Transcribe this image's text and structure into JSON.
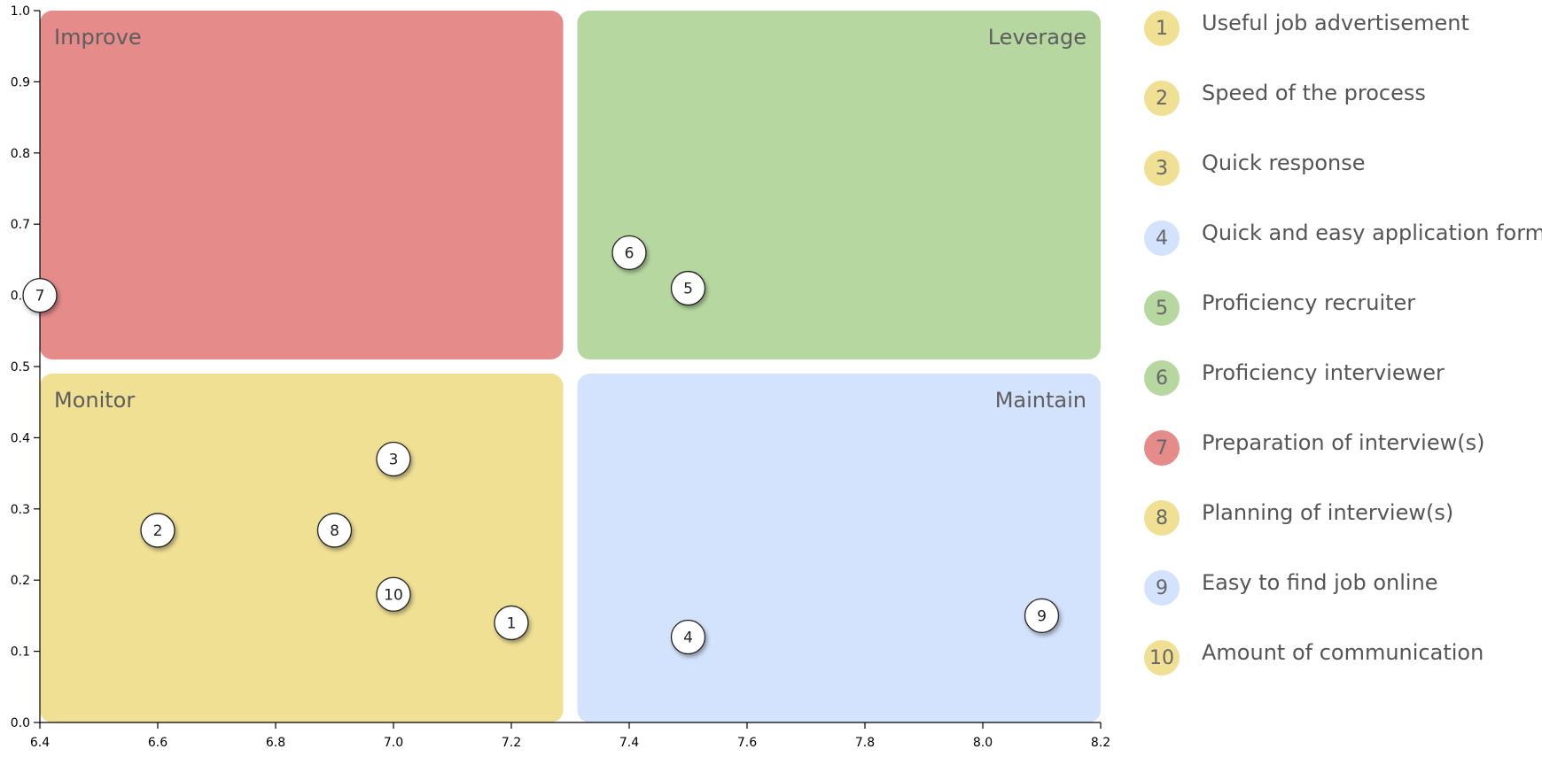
{
  "chart_data": {
    "type": "scatter",
    "title": "",
    "xlabel": "",
    "ylabel": "",
    "xlim": [
      6.4,
      8.2
    ],
    "ylim": [
      0.0,
      1.0
    ],
    "x_ticks": [
      "6.4",
      "6.6",
      "6.8",
      "7.0",
      "7.2",
      "7.4",
      "7.6",
      "7.8",
      "8.0",
      "8.2"
    ],
    "y_ticks": [
      "0.0",
      "0.1",
      "0.2",
      "0.3",
      "0.4",
      "0.5",
      "0.6",
      "0.7",
      "0.8",
      "0.9",
      "1.0"
    ],
    "grid": false,
    "legend_position": "right",
    "quadrants": [
      {
        "name": "Improve",
        "x_range": [
          6.4,
          7.3
        ],
        "y_range": [
          0.5,
          1.0
        ],
        "color": "#e58b8a",
        "label_align": "left"
      },
      {
        "name": "Leverage",
        "x_range": [
          7.3,
          8.2
        ],
        "y_range": [
          0.5,
          1.0
        ],
        "color": "#b6d8a0",
        "label_align": "right"
      },
      {
        "name": "Monitor",
        "x_range": [
          6.4,
          7.3
        ],
        "y_range": [
          0.0,
          0.5
        ],
        "color": "#f0e094",
        "label_align": "left"
      },
      {
        "name": "Maintain",
        "x_range": [
          7.3,
          8.2
        ],
        "y_range": [
          0.0,
          0.5
        ],
        "color": "#d3e3fd",
        "label_align": "right"
      }
    ],
    "points": [
      {
        "id": "1",
        "label": "Useful job advertisement",
        "x": 7.2,
        "y": 0.14,
        "quadrant": "Monitor"
      },
      {
        "id": "2",
        "label": "Speed of the process",
        "x": 6.6,
        "y": 0.27,
        "quadrant": "Monitor"
      },
      {
        "id": "3",
        "label": "Quick response",
        "x": 7.0,
        "y": 0.37,
        "quadrant": "Monitor"
      },
      {
        "id": "4",
        "label": "Quick and easy application form",
        "x": 7.5,
        "y": 0.12,
        "quadrant": "Maintain"
      },
      {
        "id": "5",
        "label": "Proficiency recruiter",
        "x": 7.5,
        "y": 0.61,
        "quadrant": "Leverage"
      },
      {
        "id": "6",
        "label": "Proficiency interviewer",
        "x": 7.4,
        "y": 0.66,
        "quadrant": "Leverage"
      },
      {
        "id": "7",
        "label": "Preparation of interview(s)",
        "x": 6.4,
        "y": 0.6,
        "quadrant": "Improve"
      },
      {
        "id": "8",
        "label": "Planning of interview(s)",
        "x": 6.9,
        "y": 0.27,
        "quadrant": "Monitor"
      },
      {
        "id": "9",
        "label": "Easy to find job online",
        "x": 8.1,
        "y": 0.15,
        "quadrant": "Maintain"
      },
      {
        "id": "10",
        "label": "Amount of communication",
        "x": 7.0,
        "y": 0.18,
        "quadrant": "Monitor"
      }
    ]
  }
}
